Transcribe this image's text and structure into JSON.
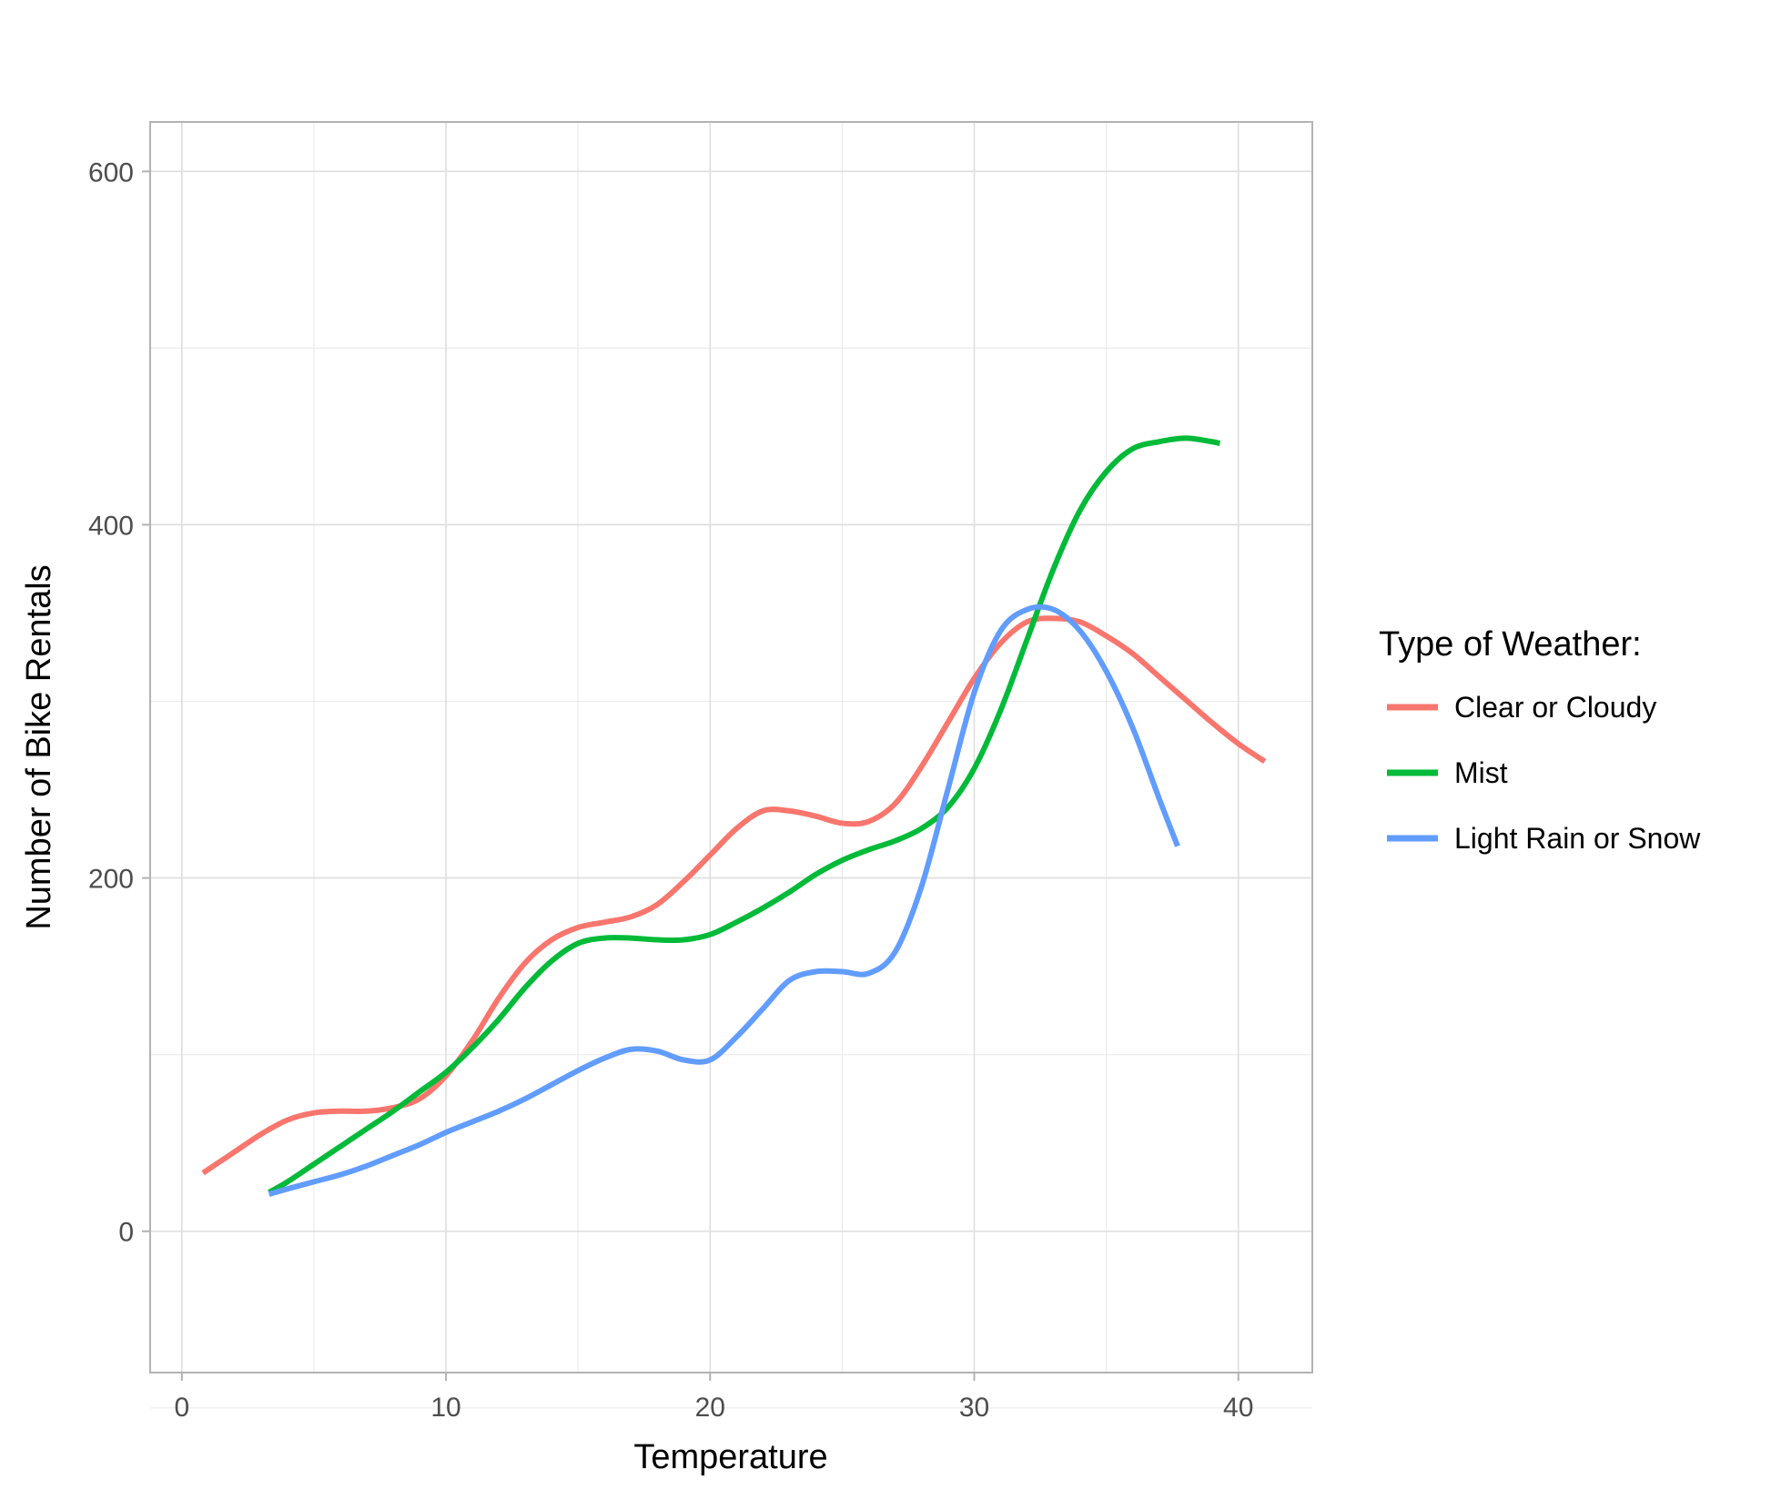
{
  "chart_data": {
    "type": "line",
    "xlabel": "Temperature",
    "ylabel": "Number of Bike Rentals",
    "xlim": [
      -1.2,
      42.8
    ],
    "ylim": [
      -80,
      628
    ],
    "x_ticks": [
      0,
      10,
      20,
      30,
      40
    ],
    "y_ticks": [
      0,
      200,
      400,
      600
    ],
    "x_minor": [
      5,
      15,
      25,
      35
    ],
    "y_minor": [
      -100,
      100,
      300,
      500
    ],
    "grid": true,
    "legend": {
      "title": "Type of Weather:",
      "position": "right"
    },
    "series": [
      {
        "name": "Clear or Cloudy",
        "color": "#F8766D",
        "x": [
          0.8,
          2,
          3,
          4,
          5,
          6,
          7,
          8,
          9,
          10,
          11,
          12,
          13,
          14,
          15,
          16,
          17,
          18,
          19,
          20,
          21,
          22,
          23,
          24,
          25,
          26,
          27,
          28,
          29,
          30,
          31,
          32,
          33,
          34,
          35,
          36,
          37,
          38,
          39,
          40,
          41
        ],
        "y": [
          33,
          45,
          55,
          63,
          67,
          68,
          68,
          70,
          75,
          88,
          108,
          132,
          152,
          165,
          172,
          175,
          178,
          185,
          198,
          213,
          228,
          238,
          238,
          235,
          231,
          232,
          242,
          263,
          288,
          313,
          333,
          345,
          347,
          345,
          337,
          327,
          314,
          301,
          288,
          276,
          266
        ]
      },
      {
        "name": "Mist",
        "color": "#00BA38",
        "x": [
          3.3,
          4,
          5,
          6,
          7,
          8,
          9,
          10,
          11,
          12,
          13,
          14,
          15,
          16,
          17,
          18,
          19,
          20,
          21,
          22,
          23,
          24,
          25,
          26,
          27,
          28,
          29,
          30,
          31,
          32,
          33,
          34,
          35,
          36,
          37,
          38,
          39,
          39.3
        ],
        "y": [
          22,
          28,
          38,
          48,
          58,
          68,
          79,
          90,
          104,
          120,
          138,
          153,
          163,
          166,
          166,
          165,
          165,
          168,
          175,
          183,
          192,
          202,
          210,
          216,
          221,
          228,
          240,
          262,
          295,
          335,
          375,
          408,
          430,
          443,
          447,
          449,
          447,
          446
        ]
      },
      {
        "name": "Light Rain or Snow",
        "color": "#619CFF",
        "x": [
          3.3,
          4,
          5,
          6,
          7,
          8,
          9,
          10,
          11,
          12,
          13,
          14,
          15,
          16,
          17,
          18,
          19,
          20,
          21,
          22,
          23,
          24,
          25,
          26,
          27,
          28,
          29,
          30,
          31,
          32,
          33,
          34,
          35,
          36,
          37,
          37.7
        ],
        "y": [
          21,
          24,
          28,
          32,
          37,
          43,
          49,
          56,
          62,
          68,
          75,
          83,
          91,
          98,
          103,
          102,
          97,
          97,
          110,
          126,
          142,
          147,
          147,
          146,
          158,
          195,
          250,
          305,
          340,
          352,
          352,
          340,
          317,
          285,
          245,
          218
        ]
      }
    ]
  }
}
